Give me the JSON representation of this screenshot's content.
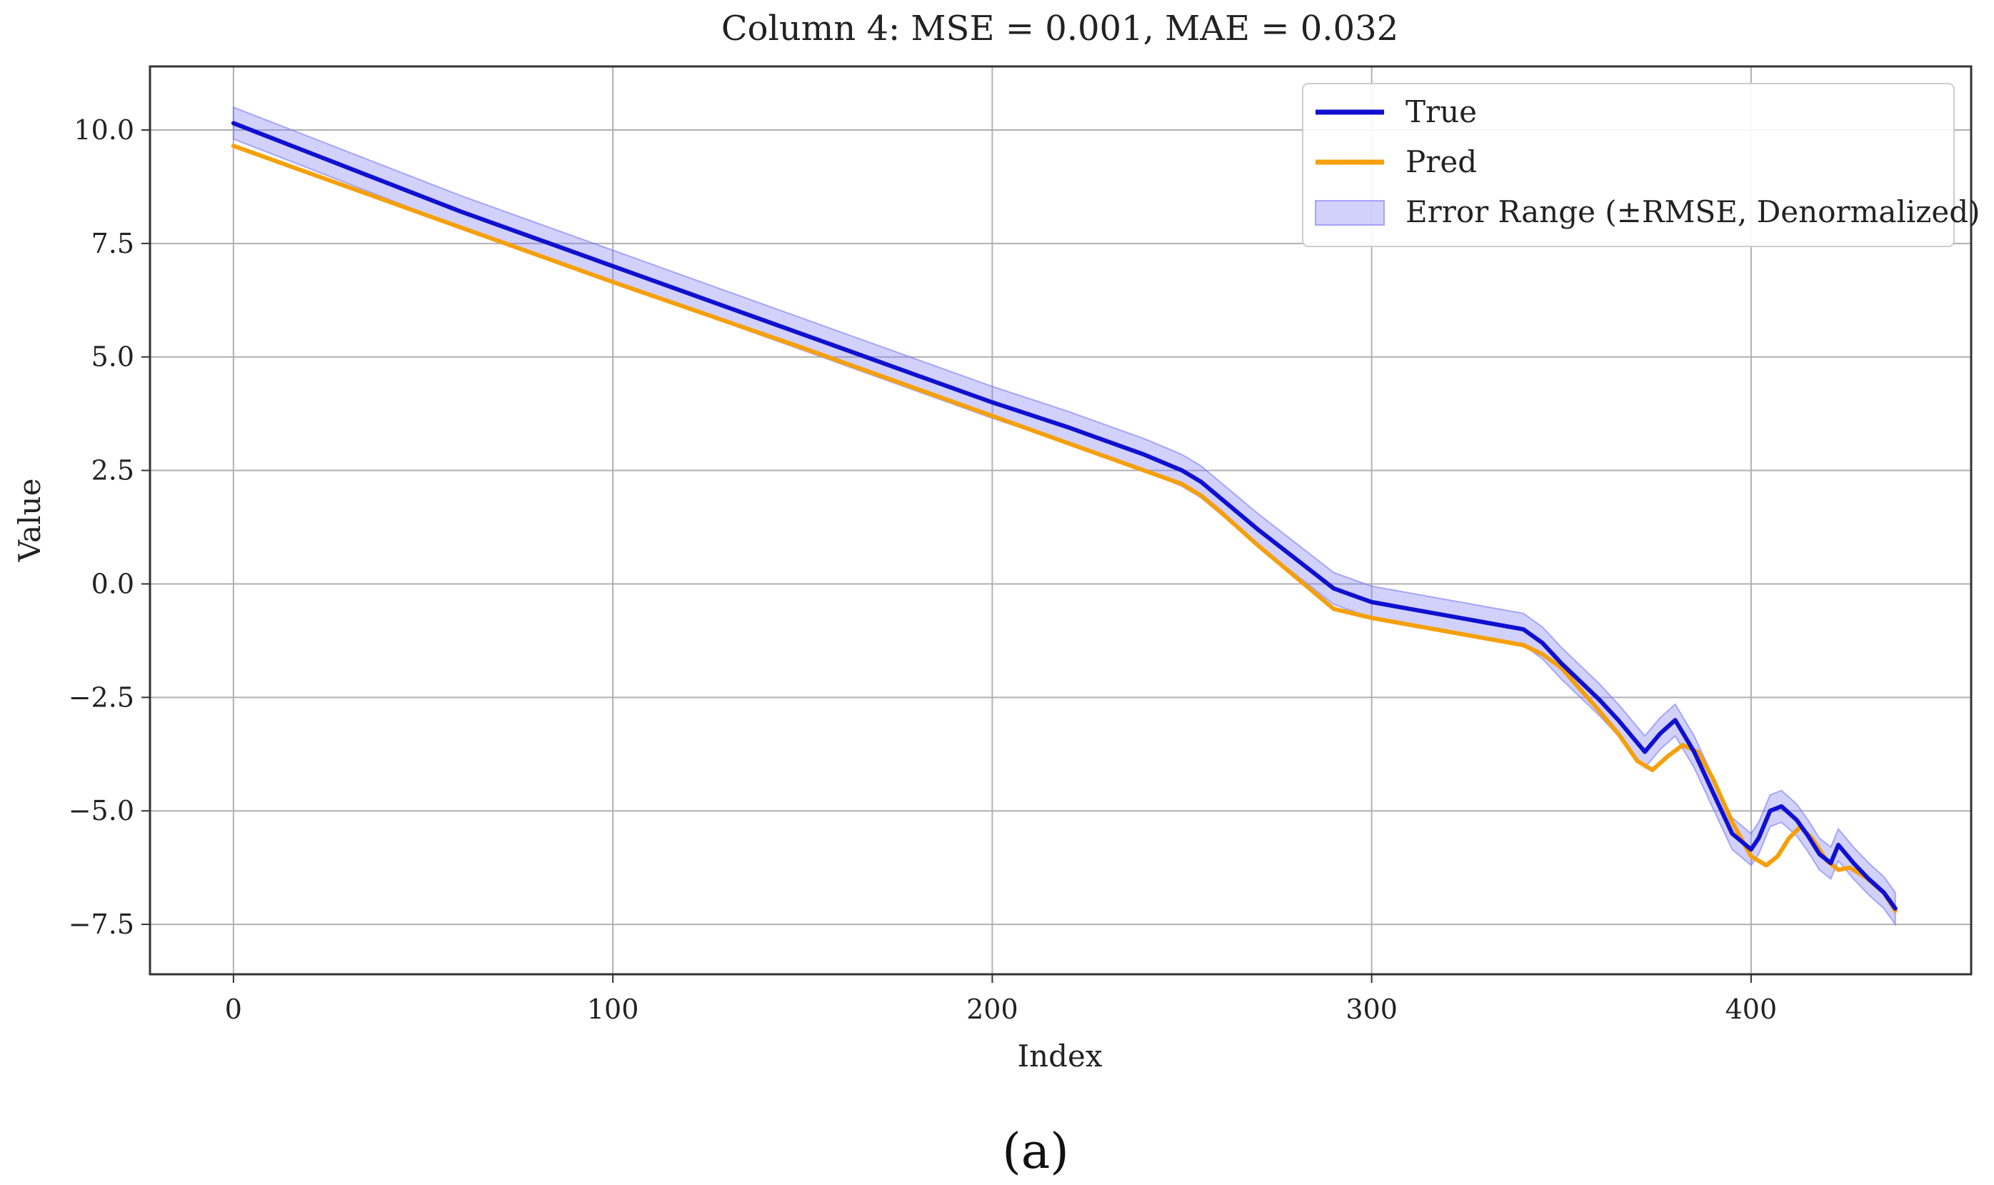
{
  "chart_data": {
    "type": "line",
    "title": "Column 4: MSE = 0.001, MAE = 0.032",
    "xlabel": "Index",
    "ylabel": "Value",
    "xlim": [
      -22,
      458
    ],
    "ylim": [
      -8.6,
      11.4
    ],
    "xticks": [
      0,
      100,
      200,
      300,
      400
    ],
    "yticks": [
      10.0,
      7.5,
      5.0,
      2.5,
      0.0,
      -2.5,
      -5.0,
      -7.5
    ],
    "xtick_labels": [
      "0",
      "100",
      "200",
      "300",
      "400"
    ],
    "ytick_labels": [
      "10.0",
      "7.5",
      "5.0",
      "2.5",
      "0.0",
      "−2.5",
      "−5.0",
      "−7.5"
    ],
    "grid": true,
    "legend_position": "top-right",
    "error_band_half_width": 0.35,
    "series": [
      {
        "name": "True",
        "color": "#1010d0",
        "x": [
          0,
          20,
          40,
          60,
          80,
          100,
          120,
          140,
          160,
          180,
          200,
          220,
          240,
          250,
          255,
          260,
          270,
          280,
          290,
          300,
          310,
          320,
          330,
          340,
          345,
          350,
          360,
          365,
          372,
          376,
          380,
          385,
          390,
          395,
          400,
          402,
          405,
          408,
          412,
          415,
          418,
          421,
          423,
          427,
          431,
          435,
          438
        ],
        "y": [
          10.15,
          9.5,
          8.85,
          8.2,
          7.6,
          7.0,
          6.4,
          5.8,
          5.2,
          4.6,
          4.0,
          3.45,
          2.85,
          2.5,
          2.25,
          1.9,
          1.2,
          0.55,
          -0.1,
          -0.4,
          -0.55,
          -0.7,
          -0.85,
          -1.0,
          -1.3,
          -1.75,
          -2.55,
          -3.0,
          -3.7,
          -3.3,
          -3.0,
          -3.7,
          -4.6,
          -5.5,
          -5.85,
          -5.6,
          -5.0,
          -4.9,
          -5.2,
          -5.55,
          -5.95,
          -6.15,
          -5.75,
          -6.15,
          -6.5,
          -6.8,
          -7.15
        ]
      },
      {
        "name": "Pred",
        "color": "#f5a00a",
        "x": [
          0,
          50,
          100,
          150,
          200,
          250,
          255,
          260,
          270,
          280,
          290,
          300,
          310,
          320,
          330,
          340,
          345,
          350,
          360,
          365,
          370,
          374,
          378,
          382,
          386,
          390,
          395,
          400,
          404,
          407,
          410,
          413,
          416,
          420,
          423,
          426,
          430,
          435,
          438
        ],
        "y": [
          9.65,
          8.15,
          6.65,
          5.2,
          3.7,
          2.2,
          1.95,
          1.6,
          0.85,
          0.15,
          -0.55,
          -0.75,
          -0.9,
          -1.05,
          -1.2,
          -1.35,
          -1.55,
          -1.85,
          -2.8,
          -3.3,
          -3.9,
          -4.1,
          -3.8,
          -3.55,
          -3.7,
          -4.3,
          -5.25,
          -6.0,
          -6.2,
          -6.0,
          -5.6,
          -5.35,
          -5.6,
          -6.1,
          -6.3,
          -6.25,
          -6.45,
          -6.8,
          -7.2
        ]
      }
    ],
    "band": {
      "name": "Error Range (±RMSE, Denormalized)",
      "color": "#7a7af5"
    },
    "caption": "(a)"
  }
}
